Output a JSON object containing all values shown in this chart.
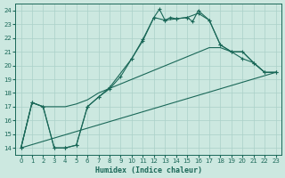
{
  "xlabel": "Humidex (Indice chaleur)",
  "xlim": [
    -0.5,
    23.5
  ],
  "ylim": [
    13.5,
    24.5
  ],
  "xticks": [
    0,
    1,
    2,
    3,
    4,
    5,
    6,
    7,
    8,
    9,
    10,
    11,
    12,
    13,
    14,
    15,
    16,
    17,
    18,
    19,
    20,
    21,
    22,
    23
  ],
  "yticks": [
    14,
    15,
    16,
    17,
    18,
    19,
    20,
    21,
    22,
    23,
    24
  ],
  "bg_color": "#cce8e0",
  "grid_color": "#aad0c8",
  "line_color": "#1a6858",
  "line1_x": [
    0,
    1,
    2,
    3,
    4,
    5,
    6,
    7,
    8,
    9,
    10,
    11,
    12,
    13,
    14,
    15,
    16,
    17,
    18,
    19,
    20,
    21,
    22,
    23
  ],
  "line1_y": [
    14.0,
    17.3,
    17.0,
    14.0,
    14.0,
    14.2,
    17.0,
    17.7,
    18.3,
    19.2,
    20.5,
    21.8,
    23.5,
    23.3,
    23.4,
    23.5,
    23.8,
    23.3,
    21.5,
    21.0,
    20.5,
    20.2,
    19.5,
    19.5
  ],
  "line2_x": [
    0,
    1,
    2,
    3,
    4,
    5,
    6,
    7,
    8,
    10,
    11,
    12,
    12.5,
    13,
    13.5,
    14,
    15,
    15.5,
    16,
    17,
    18,
    19,
    20,
    21,
    22,
    23
  ],
  "line2_y": [
    14.0,
    17.3,
    17.0,
    14.0,
    14.0,
    14.2,
    17.0,
    17.7,
    18.4,
    20.5,
    21.9,
    23.5,
    24.1,
    23.3,
    23.5,
    23.4,
    23.5,
    23.2,
    24.0,
    23.3,
    21.5,
    21.0,
    21.0,
    20.2,
    19.5,
    19.5
  ],
  "line3_x": [
    0,
    1,
    2,
    3,
    4,
    5,
    6,
    7,
    17,
    18,
    19,
    20,
    21,
    22,
    23
  ],
  "line3_y": [
    14.0,
    17.3,
    17.0,
    17.0,
    17.0,
    17.2,
    17.5,
    18.0,
    21.3,
    21.3,
    21.0,
    21.0,
    20.2,
    19.5,
    19.5
  ],
  "line4_x": [
    0,
    23
  ],
  "line4_y": [
    14.0,
    19.5
  ]
}
